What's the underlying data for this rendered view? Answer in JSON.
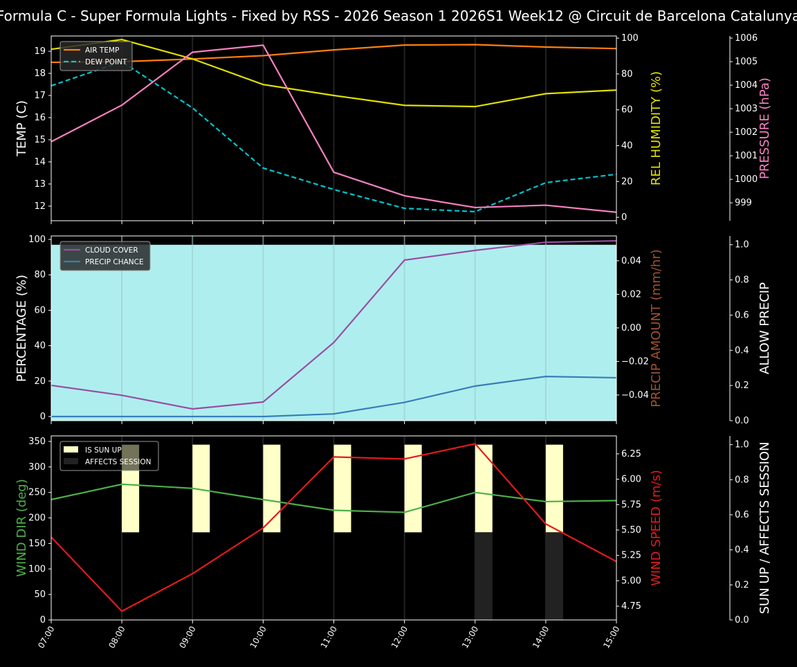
{
  "chart_data": [
    {
      "type": "line",
      "title": "Formula C - Super Formula Lights - Fixed by RSS - 2026 Season 1 2026S1 Week12 @ Circuit de Barcelona Catalunya",
      "x": [
        "07:00",
        "08:00",
        "09:00",
        "10:00",
        "11:00",
        "12:00",
        "13:00",
        "14:00",
        "15:00"
      ],
      "axes": [
        {
          "id": "temp",
          "side": "left",
          "label": "TEMP (C)",
          "color": "#ffffff",
          "ylim": [
            11.34,
            19.69
          ],
          "ticks": [
            12,
            13,
            14,
            15,
            16,
            17,
            18,
            19
          ]
        },
        {
          "id": "hum",
          "side": "right",
          "label": "REL HUMIDITY (%)",
          "color": "#e0e000",
          "ylim": [
            -1.9,
            101.2
          ],
          "ticks": [
            0,
            20,
            40,
            60,
            80,
            100
          ]
        },
        {
          "id": "pres",
          "side": "right2",
          "label": "PRESSURE (hPa)",
          "color": "#f781bf",
          "ylim": [
            998.24,
            1006.09
          ],
          "ticks": [
            999,
            1000,
            1001,
            1002,
            1003,
            1004,
            1005,
            1006
          ]
        }
      ],
      "series": [
        {
          "name": "AIR TEMP",
          "axis": "temp",
          "color": "#ff7f0e",
          "dash": false,
          "legend": true,
          "values": [
            18.5,
            18.53,
            18.65,
            18.8,
            19.06,
            19.28,
            19.3,
            19.19,
            19.12
          ]
        },
        {
          "name": "DEW POINT",
          "axis": "temp",
          "color": "#00c5cd",
          "dash": true,
          "legend": true,
          "values": [
            17.44,
            18.53,
            16.44,
            13.72,
            12.75,
            11.9,
            11.75,
            13.06,
            13.44
          ]
        },
        {
          "name": "",
          "axis": "hum",
          "color": "#e0e000",
          "dash": false,
          "legend": false,
          "values": [
            93.8,
            99.2,
            88.4,
            74.1,
            68,
            62.5,
            61.8,
            69,
            71
          ]
        },
        {
          "name": "",
          "axis": "pres",
          "color": "#f781bf",
          "dash": false,
          "legend": false,
          "values": [
            1001.6,
            1003.15,
            1005.4,
            1005.7,
            1000.3,
            999.3,
            998.8,
            998.9,
            998.6
          ]
        }
      ]
    },
    {
      "type": "line",
      "x": [
        "07:00",
        "08:00",
        "09:00",
        "10:00",
        "11:00",
        "12:00",
        "13:00",
        "14:00",
        "15:00"
      ],
      "axes": [
        {
          "id": "pct",
          "side": "left",
          "label": "PERCENTAGE (%)",
          "color": "#ffffff",
          "ylim": [
            -2.34,
            101.95
          ],
          "ticks": [
            0,
            20,
            40,
            60,
            80,
            100
          ]
        },
        {
          "id": "amt",
          "side": "right",
          "label": "PRECIP AMOUNT (mm/hr)",
          "color": "#a0522d",
          "ylim": [
            -0.0553,
            0.0548
          ],
          "ticks": [
            -0.04,
            -0.02,
            0.0,
            0.02,
            0.04
          ],
          "tick_labels": [
            "−0.04",
            "−0.02",
            "0.00",
            "0.02",
            "0.04"
          ]
        },
        {
          "id": "allow",
          "side": "right2",
          "label": "ALLOW PRECIP",
          "color": "#ffffff",
          "ylim": [
            0,
            1.05
          ],
          "ticks": [
            0,
            0.2,
            0.4,
            0.6,
            0.8,
            1.0
          ],
          "tick_labels": [
            "0.0",
            "0.2",
            "0.4",
            "0.6",
            "0.8",
            "1.0"
          ]
        }
      ],
      "fill": {
        "axis": "allow",
        "color": "#afeeee",
        "values": [
          1,
          1,
          1,
          1,
          1,
          1,
          1,
          1,
          1
        ]
      },
      "series": [
        {
          "name": "CLOUD COVER",
          "axis": "pct",
          "color": "#984ea3",
          "dash": false,
          "legend": true,
          "values": [
            17.6,
            12,
            4.3,
            8.2,
            41.8,
            88.3,
            93.8,
            98.4,
            99.2
          ]
        },
        {
          "name": "PRECIP CHANCE",
          "axis": "pct",
          "color": "#377eb8",
          "dash": false,
          "legend": true,
          "values": [
            0,
            0,
            0,
            0,
            1.5,
            8,
            17.2,
            22.6,
            21.9
          ]
        }
      ]
    },
    {
      "type": "line",
      "x": [
        "07:00",
        "08:00",
        "09:00",
        "10:00",
        "11:00",
        "12:00",
        "13:00",
        "14:00",
        "15:00"
      ],
      "axes": [
        {
          "id": "dir",
          "side": "left",
          "label": "WIND DIR (deg)",
          "color": "#4daf4a",
          "ylim": [
            0,
            360.8
          ],
          "ticks": [
            0,
            50,
            100,
            150,
            200,
            250,
            300,
            350
          ]
        },
        {
          "id": "spd",
          "side": "right",
          "label": "WIND SPEED (m/s)",
          "color": "#e41a1c",
          "ylim": [
            4.614,
            6.427
          ],
          "ticks": [
            4.75,
            5.0,
            5.25,
            5.5,
            5.75,
            6.0,
            6.25
          ],
          "tick_labels": [
            "4.75",
            "5.00",
            "5.25",
            "5.50",
            "5.75",
            "6.00",
            "6.25"
          ]
        },
        {
          "id": "sun",
          "side": "right2",
          "label": "SUN UP / AFFECTS SESSION",
          "color": "#ffffff",
          "ylim": [
            0,
            1.05
          ],
          "ticks": [
            0,
            0.2,
            0.4,
            0.6,
            0.8,
            1.0
          ],
          "tick_labels": [
            "0.0",
            "0.2",
            "0.4",
            "0.6",
            "0.8",
            "1.0"
          ]
        }
      ],
      "bars": [
        {
          "name": "IS SUN UP",
          "axis": "sun",
          "color": "#ffffc8",
          "base": 0.5,
          "values": [
            0,
            1,
            1,
            1,
            1,
            1,
            1,
            1,
            0
          ]
        },
        {
          "name": "AFFECTS SESSION",
          "axis": "sun",
          "color": "#222222",
          "base": 0,
          "values": [
            0,
            0,
            0,
            0,
            0,
            0,
            1,
            1,
            0
          ]
        }
      ],
      "series": [
        {
          "name": "",
          "axis": "dir",
          "color": "#4daf4a",
          "dash": false,
          "legend": false,
          "values": [
            236,
            266,
            258,
            236,
            215,
            211,
            250,
            232,
            234
          ]
        },
        {
          "name": "",
          "axis": "spd",
          "color": "#e41a1c",
          "dash": false,
          "legend": false,
          "values": [
            5.43,
            4.7,
            5.07,
            5.52,
            6.22,
            6.2,
            6.35,
            5.56,
            5.19
          ]
        }
      ]
    }
  ]
}
